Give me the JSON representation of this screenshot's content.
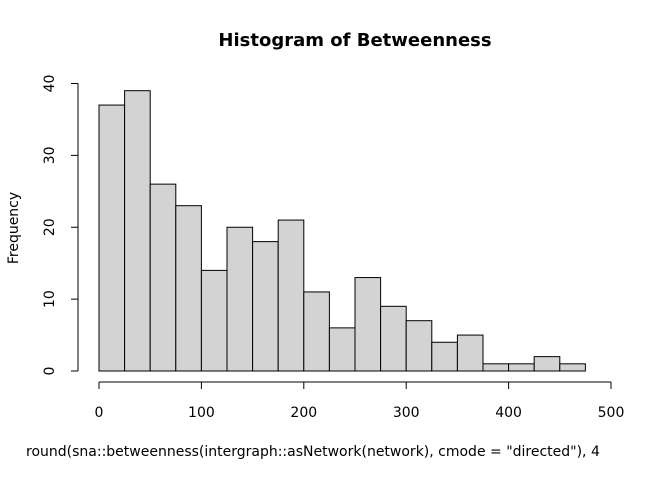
{
  "chart_data": {
    "type": "bar",
    "title": "Histogram of Betweenness",
    "xlabel": "round(sna::betweenness(intergraph::asNetwork(network), cmode = \"directed\"), 4",
    "ylabel": "Frequency",
    "bin_width": 25,
    "bins": [
      {
        "from": 0,
        "to": 25,
        "count": 37
      },
      {
        "from": 25,
        "to": 50,
        "count": 39
      },
      {
        "from": 50,
        "to": 75,
        "count": 26
      },
      {
        "from": 75,
        "to": 100,
        "count": 23
      },
      {
        "from": 100,
        "to": 125,
        "count": 14
      },
      {
        "from": 125,
        "to": 150,
        "count": 20
      },
      {
        "from": 150,
        "to": 175,
        "count": 18
      },
      {
        "from": 175,
        "to": 200,
        "count": 21
      },
      {
        "from": 200,
        "to": 225,
        "count": 11
      },
      {
        "from": 225,
        "to": 250,
        "count": 6
      },
      {
        "from": 250,
        "to": 275,
        "count": 13
      },
      {
        "from": 275,
        "to": 300,
        "count": 9
      },
      {
        "from": 300,
        "to": 325,
        "count": 7
      },
      {
        "from": 325,
        "to": 350,
        "count": 4
      },
      {
        "from": 350,
        "to": 375,
        "count": 5
      },
      {
        "from": 375,
        "to": 400,
        "count": 1
      },
      {
        "from": 400,
        "to": 425,
        "count": 1
      },
      {
        "from": 425,
        "to": 450,
        "count": 2
      },
      {
        "from": 450,
        "to": 475,
        "count": 1
      }
    ],
    "xlim": [
      0,
      500
    ],
    "ylim": [
      0,
      40
    ],
    "x_ticks": [
      0,
      100,
      200,
      300,
      400,
      500
    ],
    "y_ticks": [
      0,
      10,
      20,
      30,
      40
    ],
    "grid": false,
    "legend": "none",
    "colors": {
      "bar_fill": "#d3d3d3",
      "bar_stroke": "#000000",
      "axis": "#000000"
    }
  }
}
